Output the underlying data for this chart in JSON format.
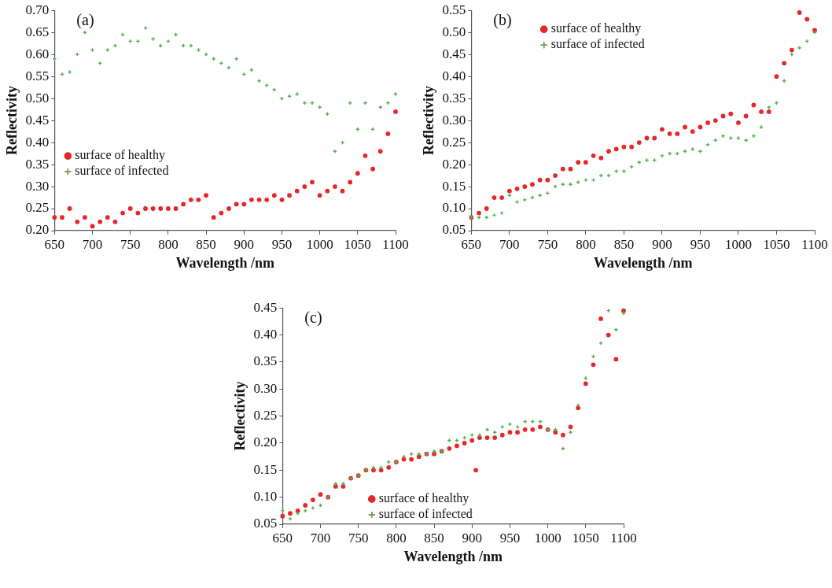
{
  "chart_data": [
    {
      "type": "scatter",
      "title": "(a)",
      "xlabel": "Wavelength /nm",
      "ylabel": "Reflectivity",
      "x": [
        650,
        660,
        670,
        680,
        690,
        700,
        710,
        720,
        730,
        740,
        750,
        760,
        770,
        780,
        790,
        800,
        810,
        820,
        830,
        840,
        850,
        860,
        870,
        880,
        890,
        900,
        910,
        920,
        930,
        940,
        950,
        960,
        970,
        980,
        990,
        1000,
        1010,
        1020,
        1030,
        1040,
        1050,
        1060,
        1070,
        1080,
        1090,
        1100
      ],
      "xlim": [
        650,
        1100
      ],
      "xticks": [
        650,
        700,
        750,
        800,
        850,
        900,
        950,
        1000,
        1050,
        1100
      ],
      "ylim": [
        0.2,
        0.7
      ],
      "yticks": [
        {
          "value": 0.2,
          "label": "0.20"
        },
        {
          "value": 0.25,
          "label": "0.25"
        },
        {
          "value": 0.3,
          "label": "0.30"
        },
        {
          "value": 0.35,
          "label": "0.35"
        },
        {
          "value": 0.4,
          "label": "0.40"
        },
        {
          "value": 0.45,
          "label": "0.45"
        },
        {
          "value": 0.5,
          "label": "0.50"
        },
        {
          "value": 0.55,
          "label": "0.55"
        },
        {
          "value": 0.6,
          "label": "0.60"
        },
        {
          "value": 0.65,
          "label": "0.65"
        },
        {
          "value": 0.7,
          "label": "0.70"
        }
      ],
      "grid": false,
      "legend": "left",
      "series": [
        {
          "name": "surface of healthy",
          "color": "#e8262a",
          "marker": "circle",
          "values": [
            0.23,
            0.23,
            0.25,
            0.22,
            0.23,
            0.21,
            0.22,
            0.23,
            0.22,
            0.24,
            0.25,
            0.24,
            0.25,
            0.25,
            0.25,
            0.25,
            0.25,
            0.26,
            0.27,
            0.27,
            0.28,
            0.23,
            0.24,
            0.25,
            0.26,
            0.26,
            0.27,
            0.27,
            0.27,
            0.28,
            0.27,
            0.28,
            0.29,
            0.3,
            0.31,
            0.28,
            0.29,
            0.3,
            0.29,
            0.31,
            0.33,
            0.37,
            0.34,
            0.38,
            0.42,
            0.47
          ]
        },
        {
          "name": "surface of infected",
          "color": "#4fb34f",
          "marker": "cross",
          "values": [
            0.59,
            0.555,
            0.56,
            0.6,
            0.65,
            0.61,
            0.58,
            0.61,
            0.62,
            0.645,
            0.63,
            0.63,
            0.66,
            0.635,
            0.62,
            0.63,
            0.645,
            0.62,
            0.62,
            0.61,
            0.6,
            0.59,
            0.58,
            0.57,
            0.59,
            0.555,
            0.565,
            0.54,
            0.53,
            0.52,
            0.5,
            0.505,
            0.51,
            0.49,
            0.49,
            0.48,
            0.465,
            0.38,
            0.4,
            0.49,
            0.43,
            0.49,
            0.43,
            0.48,
            0.49,
            0.51
          ]
        }
      ]
    },
    {
      "type": "scatter",
      "title": "(b)",
      "xlabel": "Wavelength /nm",
      "ylabel": "Reflectivity",
      "x": [
        650,
        660,
        670,
        680,
        690,
        700,
        710,
        720,
        730,
        740,
        750,
        760,
        770,
        780,
        790,
        800,
        810,
        820,
        830,
        840,
        850,
        860,
        870,
        880,
        890,
        900,
        910,
        920,
        930,
        940,
        950,
        960,
        970,
        980,
        990,
        1000,
        1010,
        1020,
        1030,
        1040,
        1050,
        1060,
        1070,
        1080,
        1090,
        1100
      ],
      "xlim": [
        650,
        1100
      ],
      "xticks": [
        650,
        700,
        750,
        800,
        850,
        900,
        950,
        1000,
        1050,
        1100
      ],
      "ylim": [
        0.05,
        0.55
      ],
      "yticks": [
        {
          "value": 0.05,
          "label": "0.05"
        },
        {
          "value": 0.1,
          "label": "0.10"
        },
        {
          "value": 0.15,
          "label": "0.15"
        },
        {
          "value": 0.2,
          "label": "0.20"
        },
        {
          "value": 0.25,
          "label": "0.25"
        },
        {
          "value": 0.3,
          "label": "0.30"
        },
        {
          "value": 0.35,
          "label": "0.35"
        },
        {
          "value": 0.4,
          "label": "0.40"
        },
        {
          "value": 0.45,
          "label": "0.45"
        },
        {
          "value": 0.5,
          "label": "0.50"
        },
        {
          "value": 0.55,
          "label": "0.55"
        }
      ],
      "grid": false,
      "legend": "top left",
      "series": [
        {
          "name": "surface of healthy",
          "color": "#e8262a",
          "marker": "circle",
          "values": [
            0.08,
            0.09,
            0.1,
            0.125,
            0.125,
            0.14,
            0.145,
            0.15,
            0.155,
            0.165,
            0.165,
            0.175,
            0.19,
            0.19,
            0.205,
            0.205,
            0.22,
            0.215,
            0.23,
            0.235,
            0.24,
            0.24,
            0.25,
            0.26,
            0.26,
            0.28,
            0.27,
            0.27,
            0.285,
            0.275,
            0.285,
            0.295,
            0.3,
            0.31,
            0.315,
            0.295,
            0.31,
            0.335,
            0.32,
            0.32,
            0.4,
            0.43,
            0.46,
            0.545,
            0.53,
            0.505
          ]
        },
        {
          "name": "surface of infected",
          "color": "#4fb34f",
          "marker": "cross",
          "values": [
            0.08,
            0.08,
            0.08,
            0.085,
            0.09,
            0.13,
            0.115,
            0.12,
            0.125,
            0.13,
            0.135,
            0.15,
            0.155,
            0.155,
            0.16,
            0.165,
            0.165,
            0.175,
            0.175,
            0.185,
            0.185,
            0.195,
            0.205,
            0.21,
            0.21,
            0.22,
            0.225,
            0.225,
            0.23,
            0.235,
            0.23,
            0.245,
            0.255,
            0.265,
            0.26,
            0.26,
            0.255,
            0.265,
            0.285,
            0.33,
            0.34,
            0.39,
            0.45,
            0.465,
            0.48,
            0.5
          ]
        }
      ]
    },
    {
      "type": "scatter",
      "title": "(c)",
      "xlabel": "Wavelength /nm",
      "ylabel": "Reflectivity",
      "x": [
        650,
        660,
        670,
        680,
        690,
        700,
        710,
        720,
        730,
        740,
        750,
        760,
        770,
        780,
        790,
        800,
        810,
        820,
        830,
        840,
        850,
        860,
        870,
        880,
        890,
        900,
        910,
        920,
        930,
        940,
        950,
        960,
        970,
        980,
        990,
        1000,
        1010,
        1020,
        1030,
        1040,
        1050,
        1060,
        1070,
        1080,
        1090,
        1100
      ],
      "xlim": [
        650,
        1100
      ],
      "xticks": [
        650,
        700,
        750,
        800,
        850,
        900,
        950,
        1000,
        1050,
        1100
      ],
      "ylim": [
        0.05,
        0.45
      ],
      "yticks": [
        {
          "value": 0.05,
          "label": "0.05"
        },
        {
          "value": 0.1,
          "label": "0.10"
        },
        {
          "value": 0.15,
          "label": "0.15"
        },
        {
          "value": 0.2,
          "label": "0.20"
        },
        {
          "value": 0.25,
          "label": "0.25"
        },
        {
          "value": 0.3,
          "label": "0.30"
        },
        {
          "value": 0.35,
          "label": "0.35"
        },
        {
          "value": 0.4,
          "label": "0.40"
        },
        {
          "value": 0.45,
          "label": "0.45"
        }
      ],
      "grid": false,
      "legend": "bottom",
      "series": [
        {
          "name": "surface of healthy",
          "color": "#e8262a",
          "marker": "circle",
          "x": [
            650,
            660,
            670,
            680,
            690,
            700,
            710,
            720,
            730,
            740,
            750,
            760,
            770,
            780,
            790,
            800,
            810,
            820,
            830,
            840,
            850,
            860,
            870,
            880,
            890,
            900,
            905,
            910,
            920,
            930,
            940,
            950,
            960,
            970,
            980,
            990,
            1000,
            1010,
            1020,
            1030,
            1040,
            1050,
            1060,
            1070,
            1080,
            1090,
            1100
          ],
          "values": [
            0.065,
            0.07,
            0.075,
            0.085,
            0.095,
            0.105,
            0.1,
            0.12,
            0.12,
            0.135,
            0.14,
            0.15,
            0.15,
            0.15,
            0.155,
            0.165,
            0.17,
            0.17,
            0.175,
            0.18,
            0.18,
            0.185,
            0.19,
            0.195,
            0.2,
            0.205,
            0.15,
            0.21,
            0.21,
            0.21,
            0.215,
            0.22,
            0.22,
            0.225,
            0.225,
            0.23,
            0.225,
            0.22,
            0.215,
            0.23,
            0.265,
            0.31,
            0.345,
            0.43,
            0.4,
            0.355,
            0.445
          ]
        },
        {
          "name": "surface of infected",
          "color": "#4fb34f",
          "marker": "cross",
          "values": [
            0.075,
            0.06,
            0.07,
            0.075,
            0.08,
            0.085,
            0.1,
            0.125,
            0.125,
            0.135,
            0.14,
            0.15,
            0.155,
            0.155,
            0.165,
            0.165,
            0.175,
            0.18,
            0.18,
            0.18,
            0.185,
            0.185,
            0.205,
            0.205,
            0.21,
            0.215,
            0.215,
            0.225,
            0.22,
            0.23,
            0.235,
            0.23,
            0.24,
            0.24,
            0.24,
            0.225,
            0.225,
            0.19,
            0.22,
            0.27,
            0.32,
            0.36,
            0.385,
            0.445,
            0.41,
            0.44
          ]
        }
      ]
    }
  ]
}
